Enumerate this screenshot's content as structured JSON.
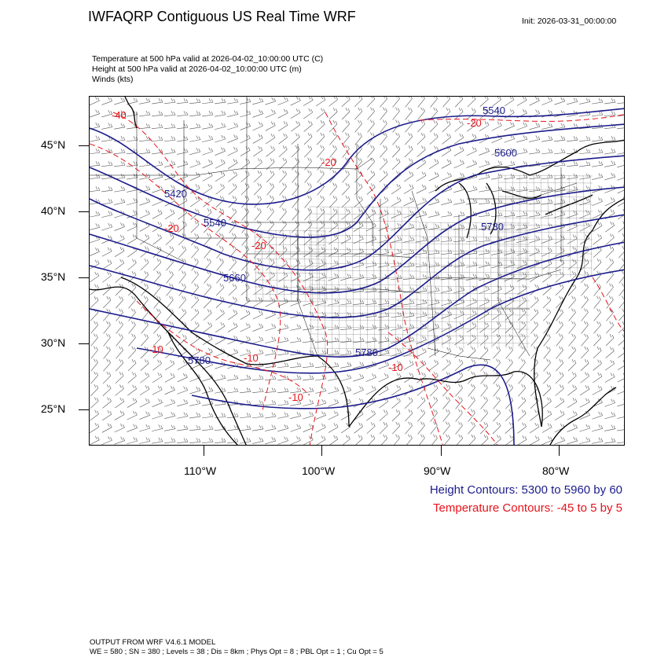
{
  "title": "IWFAQRP Contiguous US Real Time WRF",
  "init": "Init: 2026-03-31_00:00:00",
  "subtitles": [
    "Temperature at 500 hPa valid at 2026-04-02_10:00:00 UTC   (C)",
    "Height at 500 hPa valid at 2026-04-02_10:00:00 UTC   (m)",
    "Winds   (kts)"
  ],
  "lat_labels": [
    "45°N",
    "40°N",
    "35°N",
    "30°N",
    "25°N"
  ],
  "lon_labels": [
    "110°W",
    "100°W",
    "90°W",
    "80°W"
  ],
  "height_contour_labels": [
    "5540",
    "5600",
    "5420",
    "5540",
    "5780",
    "5660",
    "5780",
    "5780"
  ],
  "temp_contour_labels": [
    "-40",
    "-20",
    "-20",
    "-20",
    "-20",
    "-10",
    "-10",
    "-10",
    "-10"
  ],
  "legend": {
    "height": "Height Contours: 5300 to 5960 by 60",
    "temperature": "Temperature Contours: -45 to 5 by 5"
  },
  "footer": {
    "line1": "OUTPUT FROM WRF V4.6.1 MODEL",
    "line2": "WE = 580 ; SN = 380 ; Levels = 38 ; Dis = 8km ; Phys Opt = 8 ; PBL Opt = 1 ; Cu Opt = 5"
  },
  "colors": {
    "height": "#1c1c8c",
    "temperature": "#e8131a",
    "outline": "#000000"
  }
}
